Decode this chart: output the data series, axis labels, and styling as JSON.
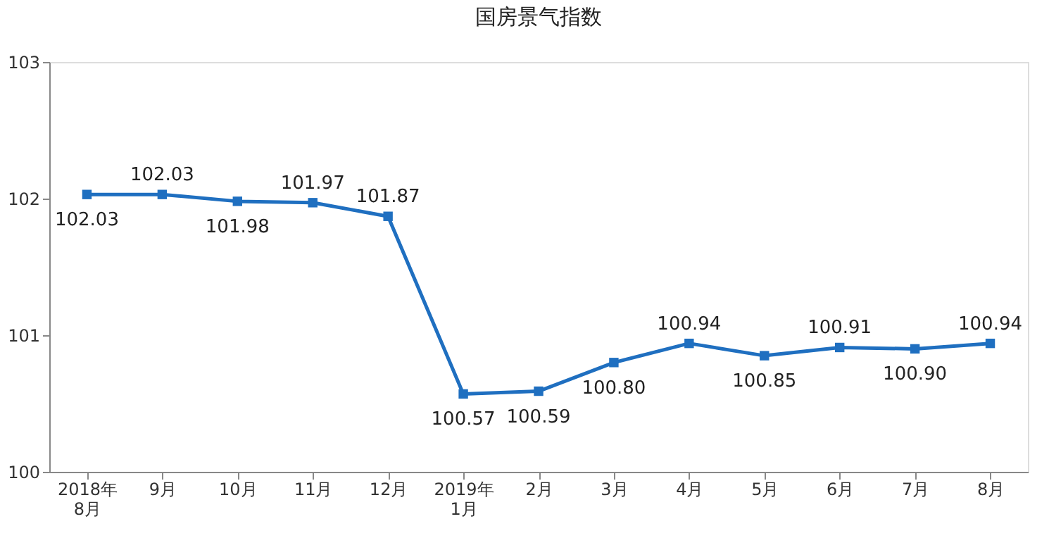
{
  "chart_data": {
    "type": "line",
    "title": "国房景气指数",
    "categories": [
      "2018年\n8月",
      "9月",
      "10月",
      "11月",
      "12月",
      "2019年\n1月",
      "2月",
      "3月",
      "4月",
      "5月",
      "6月",
      "7月",
      "8月"
    ],
    "series": [
      {
        "color": "#1f6fc0",
        "values": [
          102.03,
          102.03,
          101.98,
          101.97,
          101.87,
          100.57,
          100.59,
          100.8,
          100.94,
          100.85,
          100.91,
          100.9,
          100.94
        ]
      }
    ],
    "value_labels": [
      "102.03",
      "102.03",
      "101.98",
      "101.97",
      "101.87",
      "100.57",
      "100.59",
      "100.80",
      "100.94",
      "100.85",
      "100.91",
      "100.90",
      "100.94"
    ],
    "ylim": [
      100,
      103
    ],
    "yticks": [
      100,
      101,
      102,
      103
    ],
    "grid": false,
    "marker": "square",
    "line_style": "solid"
  }
}
